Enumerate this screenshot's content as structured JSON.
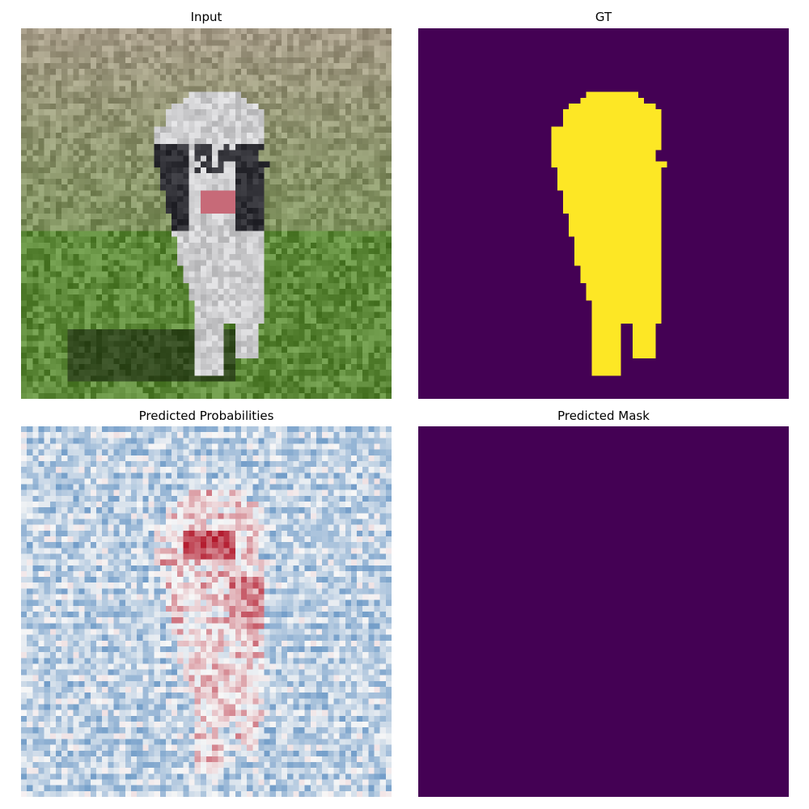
{
  "panels": {
    "input": {
      "title": "Input"
    },
    "gt": {
      "title": "GT"
    },
    "probabilities": {
      "title": "Predicted Probabilities"
    },
    "mask": {
      "title": "Predicted Mask"
    }
  },
  "colors": {
    "mask_background": "#440154",
    "mask_foreground": "#fde725",
    "grass_green": "#5e8a3a",
    "dry_grass": "#a49a86",
    "dog_white": "#e6e6e8",
    "dog_black": "#1c1c22",
    "tongue": "#c76a78",
    "prob_low": "#2166ac",
    "prob_mid": "#f7f7f7",
    "prob_high": "#b2182b"
  },
  "grid_resolution": 64
}
